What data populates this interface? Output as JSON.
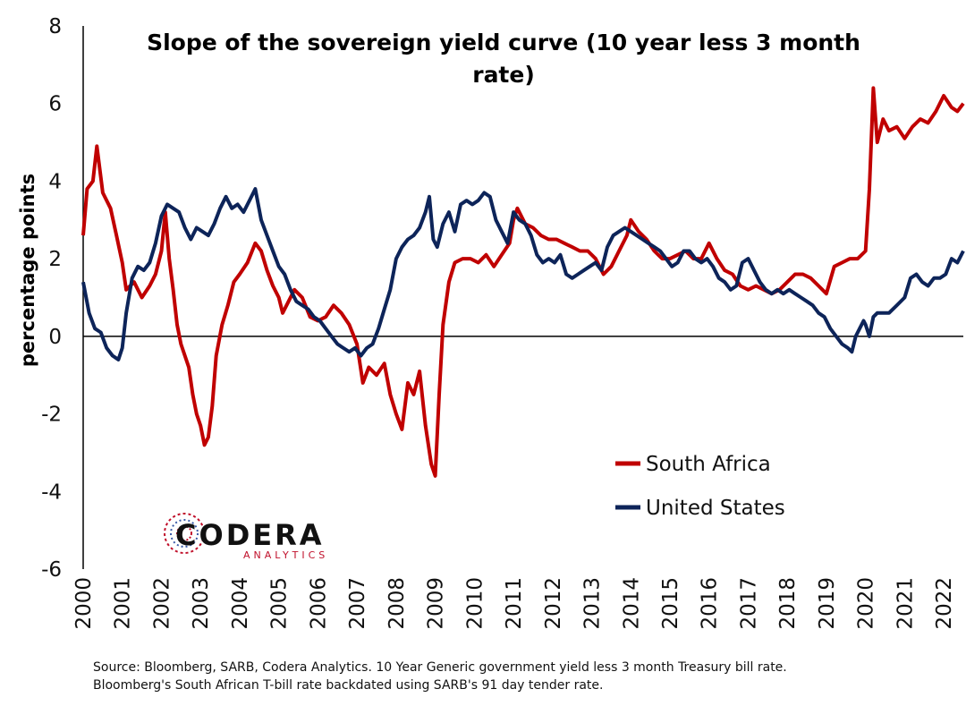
{
  "chart_data": {
    "type": "line",
    "title_line1": "Slope of the sovereign yield curve (10 year less 3 month",
    "title_line2": "rate)",
    "ylabel": "percentage points",
    "xlabel": "",
    "xlim": [
      2000,
      2022.5
    ],
    "ylim": [
      -6,
      8
    ],
    "yticks": [
      -6,
      -4,
      -2,
      0,
      2,
      4,
      6,
      8
    ],
    "ytick_labels": [
      "-6",
      "-4",
      "-2",
      "0",
      "2",
      "4",
      "6",
      "8"
    ],
    "xticks": [
      2000,
      2001,
      2002,
      2003,
      2004,
      2005,
      2006,
      2007,
      2008,
      2009,
      2010,
      2011,
      2012,
      2013,
      2014,
      2015,
      2016,
      2017,
      2018,
      2019,
      2020,
      2021,
      2022
    ],
    "xtick_labels": [
      "2000",
      "2001",
      "2002",
      "2003",
      "2004",
      "2005",
      "2006",
      "2007",
      "2008",
      "2009",
      "2010",
      "2011",
      "2012",
      "2013",
      "2014",
      "2015",
      "2016",
      "2017",
      "2018",
      "2019",
      "2020",
      "2021",
      "2022"
    ],
    "grid": false,
    "legend_position": "bottom-right",
    "series": [
      {
        "name": "South Africa",
        "color": "#c00000",
        "points": [
          [
            2000.0,
            2.6
          ],
          [
            2000.1,
            3.8
          ],
          [
            2000.25,
            4.0
          ],
          [
            2000.35,
            4.9
          ],
          [
            2000.5,
            3.7
          ],
          [
            2000.7,
            3.3
          ],
          [
            2000.85,
            2.6
          ],
          [
            2001.0,
            1.9
          ],
          [
            2001.1,
            1.2
          ],
          [
            2001.3,
            1.4
          ],
          [
            2001.5,
            1.0
          ],
          [
            2001.7,
            1.3
          ],
          [
            2001.85,
            1.6
          ],
          [
            2002.0,
            2.2
          ],
          [
            2002.1,
            3.2
          ],
          [
            2002.2,
            2.0
          ],
          [
            2002.3,
            1.2
          ],
          [
            2002.4,
            0.3
          ],
          [
            2002.5,
            -0.2
          ],
          [
            2002.7,
            -0.8
          ],
          [
            2002.8,
            -1.5
          ],
          [
            2002.9,
            -2.0
          ],
          [
            2003.0,
            -2.3
          ],
          [
            2003.1,
            -2.8
          ],
          [
            2003.2,
            -2.6
          ],
          [
            2003.3,
            -1.8
          ],
          [
            2003.4,
            -0.5
          ],
          [
            2003.55,
            0.3
          ],
          [
            2003.7,
            0.8
          ],
          [
            2003.85,
            1.4
          ],
          [
            2004.0,
            1.6
          ],
          [
            2004.2,
            1.9
          ],
          [
            2004.4,
            2.4
          ],
          [
            2004.55,
            2.2
          ],
          [
            2004.7,
            1.7
          ],
          [
            2004.85,
            1.3
          ],
          [
            2005.0,
            1.0
          ],
          [
            2005.1,
            0.6
          ],
          [
            2005.2,
            0.8
          ],
          [
            2005.4,
            1.2
          ],
          [
            2005.6,
            1.0
          ],
          [
            2005.8,
            0.5
          ],
          [
            2006.0,
            0.4
          ],
          [
            2006.2,
            0.5
          ],
          [
            2006.4,
            0.8
          ],
          [
            2006.6,
            0.6
          ],
          [
            2006.8,
            0.3
          ],
          [
            2007.0,
            -0.2
          ],
          [
            2007.15,
            -1.2
          ],
          [
            2007.3,
            -0.8
          ],
          [
            2007.5,
            -1.0
          ],
          [
            2007.7,
            -0.7
          ],
          [
            2007.85,
            -1.5
          ],
          [
            2008.0,
            -2.0
          ],
          [
            2008.15,
            -2.4
          ],
          [
            2008.3,
            -1.2
          ],
          [
            2008.45,
            -1.5
          ],
          [
            2008.6,
            -0.9
          ],
          [
            2008.75,
            -2.3
          ],
          [
            2008.9,
            -3.3
          ],
          [
            2009.0,
            -3.6
          ],
          [
            2009.1,
            -1.5
          ],
          [
            2009.2,
            0.3
          ],
          [
            2009.35,
            1.4
          ],
          [
            2009.5,
            1.9
          ],
          [
            2009.7,
            2.0
          ],
          [
            2009.9,
            2.0
          ],
          [
            2010.1,
            1.9
          ],
          [
            2010.3,
            2.1
          ],
          [
            2010.5,
            1.8
          ],
          [
            2010.7,
            2.1
          ],
          [
            2010.9,
            2.4
          ],
          [
            2011.0,
            3.0
          ],
          [
            2011.1,
            3.3
          ],
          [
            2011.3,
            2.9
          ],
          [
            2011.5,
            2.8
          ],
          [
            2011.7,
            2.6
          ],
          [
            2011.9,
            2.5
          ],
          [
            2012.1,
            2.5
          ],
          [
            2012.3,
            2.4
          ],
          [
            2012.5,
            2.3
          ],
          [
            2012.7,
            2.2
          ],
          [
            2012.9,
            2.2
          ],
          [
            2013.1,
            2.0
          ],
          [
            2013.3,
            1.6
          ],
          [
            2013.5,
            1.8
          ],
          [
            2013.7,
            2.2
          ],
          [
            2013.9,
            2.6
          ],
          [
            2014.0,
            3.0
          ],
          [
            2014.2,
            2.7
          ],
          [
            2014.4,
            2.5
          ],
          [
            2014.6,
            2.2
          ],
          [
            2014.8,
            2.0
          ],
          [
            2015.0,
            2.0
          ],
          [
            2015.2,
            2.1
          ],
          [
            2015.4,
            2.2
          ],
          [
            2015.6,
            2.0
          ],
          [
            2015.8,
            2.0
          ],
          [
            2016.0,
            2.4
          ],
          [
            2016.2,
            2.0
          ],
          [
            2016.4,
            1.7
          ],
          [
            2016.6,
            1.6
          ],
          [
            2016.8,
            1.3
          ],
          [
            2017.0,
            1.2
          ],
          [
            2017.2,
            1.3
          ],
          [
            2017.4,
            1.2
          ],
          [
            2017.6,
            1.1
          ],
          [
            2017.8,
            1.2
          ],
          [
            2018.0,
            1.4
          ],
          [
            2018.2,
            1.6
          ],
          [
            2018.4,
            1.6
          ],
          [
            2018.6,
            1.5
          ],
          [
            2018.8,
            1.3
          ],
          [
            2019.0,
            1.1
          ],
          [
            2019.2,
            1.8
          ],
          [
            2019.4,
            1.9
          ],
          [
            2019.6,
            2.0
          ],
          [
            2019.8,
            2.0
          ],
          [
            2020.0,
            2.2
          ],
          [
            2020.1,
            3.8
          ],
          [
            2020.2,
            6.4
          ],
          [
            2020.3,
            5.0
          ],
          [
            2020.45,
            5.6
          ],
          [
            2020.6,
            5.3
          ],
          [
            2020.8,
            5.4
          ],
          [
            2021.0,
            5.1
          ],
          [
            2021.2,
            5.4
          ],
          [
            2021.4,
            5.6
          ],
          [
            2021.6,
            5.5
          ],
          [
            2021.8,
            5.8
          ],
          [
            2022.0,
            6.2
          ],
          [
            2022.2,
            5.9
          ],
          [
            2022.35,
            5.8
          ],
          [
            2022.5,
            6.0
          ]
        ]
      },
      {
        "name": "United States",
        "color": "#0d2459",
        "points": [
          [
            2000.0,
            1.4
          ],
          [
            2000.15,
            0.6
          ],
          [
            2000.3,
            0.2
          ],
          [
            2000.45,
            0.1
          ],
          [
            2000.6,
            -0.3
          ],
          [
            2000.75,
            -0.5
          ],
          [
            2000.9,
            -0.6
          ],
          [
            2001.0,
            -0.3
          ],
          [
            2001.1,
            0.6
          ],
          [
            2001.25,
            1.5
          ],
          [
            2001.4,
            1.8
          ],
          [
            2001.55,
            1.7
          ],
          [
            2001.7,
            1.9
          ],
          [
            2001.85,
            2.4
          ],
          [
            2002.0,
            3.1
          ],
          [
            2002.15,
            3.4
          ],
          [
            2002.3,
            3.3
          ],
          [
            2002.45,
            3.2
          ],
          [
            2002.6,
            2.8
          ],
          [
            2002.75,
            2.5
          ],
          [
            2002.9,
            2.8
          ],
          [
            2003.05,
            2.7
          ],
          [
            2003.2,
            2.6
          ],
          [
            2003.35,
            2.9
          ],
          [
            2003.5,
            3.3
          ],
          [
            2003.65,
            3.6
          ],
          [
            2003.8,
            3.3
          ],
          [
            2003.95,
            3.4
          ],
          [
            2004.1,
            3.2
          ],
          [
            2004.25,
            3.5
          ],
          [
            2004.4,
            3.8
          ],
          [
            2004.55,
            3.0
          ],
          [
            2004.7,
            2.6
          ],
          [
            2004.85,
            2.2
          ],
          [
            2005.0,
            1.8
          ],
          [
            2005.15,
            1.6
          ],
          [
            2005.3,
            1.2
          ],
          [
            2005.45,
            0.9
          ],
          [
            2005.6,
            0.8
          ],
          [
            2005.75,
            0.7
          ],
          [
            2005.9,
            0.5
          ],
          [
            2006.05,
            0.4
          ],
          [
            2006.2,
            0.2
          ],
          [
            2006.35,
            0.0
          ],
          [
            2006.5,
            -0.2
          ],
          [
            2006.65,
            -0.3
          ],
          [
            2006.8,
            -0.4
          ],
          [
            2006.95,
            -0.3
          ],
          [
            2007.1,
            -0.5
          ],
          [
            2007.25,
            -0.3
          ],
          [
            2007.4,
            -0.2
          ],
          [
            2007.55,
            0.2
          ],
          [
            2007.7,
            0.7
          ],
          [
            2007.85,
            1.2
          ],
          [
            2008.0,
            2.0
          ],
          [
            2008.15,
            2.3
          ],
          [
            2008.3,
            2.5
          ],
          [
            2008.45,
            2.6
          ],
          [
            2008.6,
            2.8
          ],
          [
            2008.75,
            3.2
          ],
          [
            2008.85,
            3.6
          ],
          [
            2008.95,
            2.5
          ],
          [
            2009.05,
            2.3
          ],
          [
            2009.2,
            2.9
          ],
          [
            2009.35,
            3.2
          ],
          [
            2009.5,
            2.7
          ],
          [
            2009.65,
            3.4
          ],
          [
            2009.8,
            3.5
          ],
          [
            2009.95,
            3.4
          ],
          [
            2010.1,
            3.5
          ],
          [
            2010.25,
            3.7
          ],
          [
            2010.4,
            3.6
          ],
          [
            2010.55,
            3.0
          ],
          [
            2010.7,
            2.7
          ],
          [
            2010.85,
            2.4
          ],
          [
            2011.0,
            3.2
          ],
          [
            2011.15,
            3.0
          ],
          [
            2011.3,
            2.9
          ],
          [
            2011.45,
            2.6
          ],
          [
            2011.6,
            2.1
          ],
          [
            2011.75,
            1.9
          ],
          [
            2011.9,
            2.0
          ],
          [
            2012.05,
            1.9
          ],
          [
            2012.2,
            2.1
          ],
          [
            2012.35,
            1.6
          ],
          [
            2012.5,
            1.5
          ],
          [
            2012.65,
            1.6
          ],
          [
            2012.8,
            1.7
          ],
          [
            2012.95,
            1.8
          ],
          [
            2013.1,
            1.9
          ],
          [
            2013.25,
            1.7
          ],
          [
            2013.4,
            2.3
          ],
          [
            2013.55,
            2.6
          ],
          [
            2013.7,
            2.7
          ],
          [
            2013.85,
            2.8
          ],
          [
            2014.0,
            2.7
          ],
          [
            2014.15,
            2.6
          ],
          [
            2014.3,
            2.5
          ],
          [
            2014.45,
            2.4
          ],
          [
            2014.6,
            2.3
          ],
          [
            2014.75,
            2.2
          ],
          [
            2014.9,
            2.0
          ],
          [
            2015.05,
            1.8
          ],
          [
            2015.2,
            1.9
          ],
          [
            2015.35,
            2.2
          ],
          [
            2015.5,
            2.2
          ],
          [
            2015.65,
            2.0
          ],
          [
            2015.8,
            1.9
          ],
          [
            2015.95,
            2.0
          ],
          [
            2016.1,
            1.8
          ],
          [
            2016.25,
            1.5
          ],
          [
            2016.4,
            1.4
          ],
          [
            2016.55,
            1.2
          ],
          [
            2016.7,
            1.3
          ],
          [
            2016.85,
            1.9
          ],
          [
            2017.0,
            2.0
          ],
          [
            2017.15,
            1.7
          ],
          [
            2017.3,
            1.4
          ],
          [
            2017.45,
            1.2
          ],
          [
            2017.6,
            1.1
          ],
          [
            2017.75,
            1.2
          ],
          [
            2017.9,
            1.1
          ],
          [
            2018.05,
            1.2
          ],
          [
            2018.2,
            1.1
          ],
          [
            2018.35,
            1.0
          ],
          [
            2018.5,
            0.9
          ],
          [
            2018.65,
            0.8
          ],
          [
            2018.8,
            0.6
          ],
          [
            2018.95,
            0.5
          ],
          [
            2019.1,
            0.2
          ],
          [
            2019.25,
            0.0
          ],
          [
            2019.4,
            -0.2
          ],
          [
            2019.55,
            -0.3
          ],
          [
            2019.65,
            -0.4
          ],
          [
            2019.75,
            0.0
          ],
          [
            2019.85,
            0.2
          ],
          [
            2019.95,
            0.4
          ],
          [
            2020.0,
            0.3
          ],
          [
            2020.1,
            0.0
          ],
          [
            2020.2,
            0.5
          ],
          [
            2020.3,
            0.6
          ],
          [
            2020.45,
            0.6
          ],
          [
            2020.6,
            0.6
          ],
          [
            2020.8,
            0.8
          ],
          [
            2021.0,
            1.0
          ],
          [
            2021.15,
            1.5
          ],
          [
            2021.3,
            1.6
          ],
          [
            2021.45,
            1.4
          ],
          [
            2021.6,
            1.3
          ],
          [
            2021.75,
            1.5
          ],
          [
            2021.9,
            1.5
          ],
          [
            2022.05,
            1.6
          ],
          [
            2022.2,
            2.0
          ],
          [
            2022.35,
            1.9
          ],
          [
            2022.5,
            2.2
          ]
        ]
      }
    ]
  },
  "logo": {
    "name": "CODERA",
    "tagline": "ANALYTICS"
  },
  "source_line1": "Source: Bloomberg, SARB, Codera Analytics. 10 Year Generic government yield less 3 month Treasury bill rate.",
  "source_line2": "Bloomberg's South African T-bill rate backdated using SARB's 91 day tender rate."
}
